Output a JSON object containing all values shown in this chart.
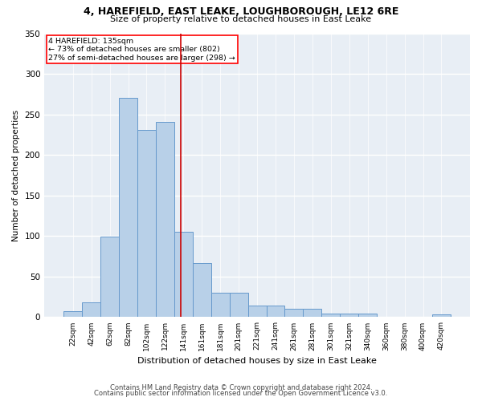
{
  "title1": "4, HAREFIELD, EAST LEAKE, LOUGHBOROUGH, LE12 6RE",
  "title2": "Size of property relative to detached houses in East Leake",
  "xlabel": "Distribution of detached houses by size in East Leake",
  "ylabel": "Number of detached properties",
  "categories": [
    "22sqm",
    "42sqm",
    "62sqm",
    "82sqm",
    "102sqm",
    "122sqm",
    "141sqm",
    "161sqm",
    "181sqm",
    "201sqm",
    "221sqm",
    "241sqm",
    "261sqm",
    "281sqm",
    "301sqm",
    "321sqm",
    "340sqm",
    "360sqm",
    "380sqm",
    "400sqm",
    "420sqm"
  ],
  "values": [
    7,
    18,
    99,
    270,
    231,
    241,
    105,
    67,
    30,
    30,
    14,
    14,
    10,
    10,
    4,
    4,
    4,
    0,
    0,
    0,
    3
  ],
  "bar_color": "#b8d0e8",
  "bar_edge_color": "#6699cc",
  "vline_color": "#cc0000",
  "background_color": "#e8eef5",
  "grid_color": "#ffffff",
  "annotation_title": "4 HAREFIELD: 135sqm",
  "annotation_line1": "← 73% of detached houses are smaller (802)",
  "annotation_line2": "27% of semi-detached houses are larger (298) →",
  "footer1": "Contains HM Land Registry data © Crown copyright and database right 2024.",
  "footer2": "Contains public sector information licensed under the Open Government Licence v3.0.",
  "ylim": [
    0,
    350
  ],
  "yticks": [
    0,
    50,
    100,
    150,
    200,
    250,
    300,
    350
  ],
  "vline_x_index": 5.85
}
